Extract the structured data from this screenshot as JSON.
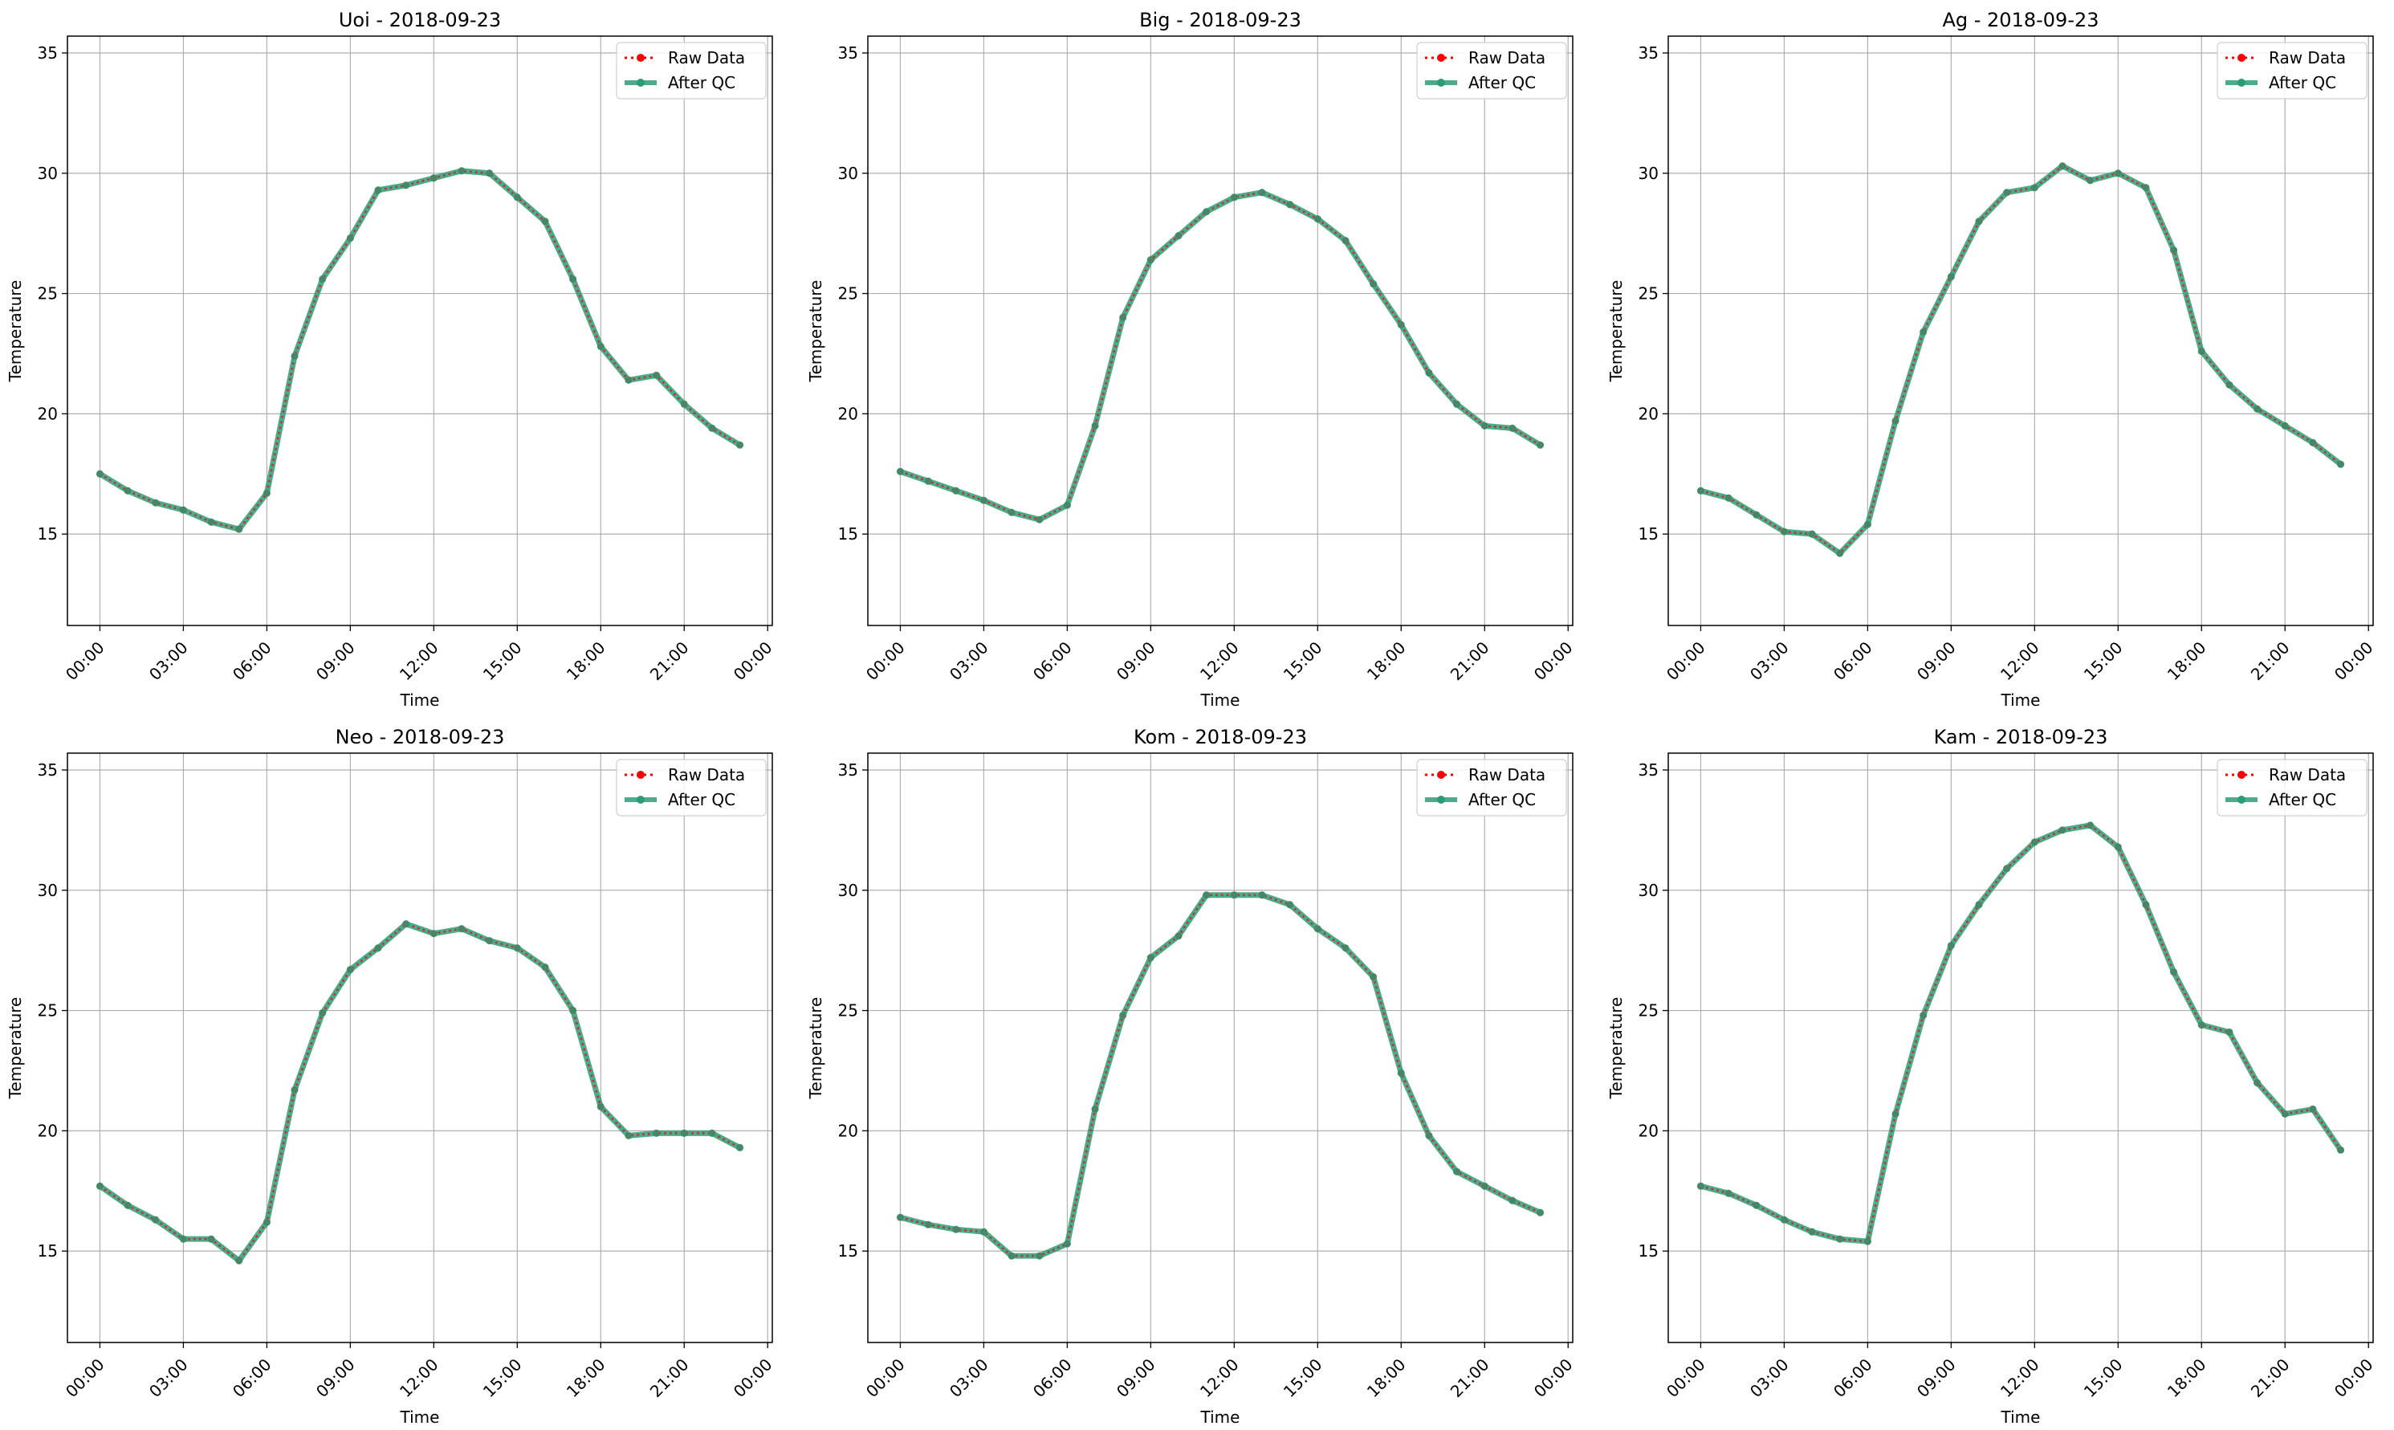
{
  "colors": {
    "raw": "#ff0000",
    "qc": "#2a9d78",
    "grid": "#b0b0b0",
    "axis": "#000000"
  },
  "legend": {
    "placement": "top-right",
    "entries": [
      "Raw Data",
      "After QC"
    ]
  },
  "chart_data": [
    {
      "type": "line",
      "title": "Uoi - 2018-09-23",
      "xlabel": "Time",
      "ylabel": "Temperature",
      "x_ticks": [
        "00:00",
        "03:00",
        "06:00",
        "09:00",
        "12:00",
        "15:00",
        "18:00",
        "21:00",
        "00:00"
      ],
      "y_ticks": [
        15,
        20,
        25,
        30,
        35
      ],
      "xlim": [
        "2018-09-22 22:50",
        "2018-09-24 00:10"
      ],
      "ylim": [
        11.2,
        35.7
      ],
      "grid": true,
      "x": [
        "00:00",
        "01:00",
        "02:00",
        "03:00",
        "04:00",
        "05:00",
        "06:00",
        "07:00",
        "08:00",
        "09:00",
        "10:00",
        "11:00",
        "12:00",
        "13:00",
        "14:00",
        "15:00",
        "16:00",
        "17:00",
        "18:00",
        "19:00",
        "20:00",
        "21:00",
        "22:00",
        "23:00"
      ],
      "series": [
        {
          "name": "Raw Data",
          "values": [
            17.5,
            16.8,
            16.3,
            16.0,
            15.5,
            15.2,
            16.7,
            22.4,
            25.6,
            27.3,
            29.3,
            29.5,
            29.8,
            30.1,
            30.0,
            29.0,
            28.0,
            25.6,
            22.8,
            21.4,
            21.6,
            20.4,
            19.4,
            18.7
          ]
        },
        {
          "name": "After QC",
          "values": [
            17.5,
            16.8,
            16.3,
            16.0,
            15.5,
            15.2,
            16.7,
            22.4,
            25.6,
            27.3,
            29.3,
            29.5,
            29.8,
            30.1,
            30.0,
            29.0,
            28.0,
            25.6,
            22.8,
            21.4,
            21.6,
            20.4,
            19.4,
            18.7
          ]
        }
      ]
    },
    {
      "type": "line",
      "title": "Big - 2018-09-23",
      "xlabel": "Time",
      "ylabel": "Temperature",
      "x_ticks": [
        "00:00",
        "03:00",
        "06:00",
        "09:00",
        "12:00",
        "15:00",
        "18:00",
        "21:00",
        "00:00"
      ],
      "y_ticks": [
        15,
        20,
        25,
        30,
        35
      ],
      "xlim": [
        "2018-09-22 22:50",
        "2018-09-24 00:10"
      ],
      "ylim": [
        11.2,
        35.7
      ],
      "grid": true,
      "x": [
        "00:00",
        "01:00",
        "02:00",
        "03:00",
        "04:00",
        "05:00",
        "06:00",
        "07:00",
        "08:00",
        "09:00",
        "10:00",
        "11:00",
        "12:00",
        "13:00",
        "14:00",
        "15:00",
        "16:00",
        "17:00",
        "18:00",
        "19:00",
        "20:00",
        "21:00",
        "22:00",
        "23:00"
      ],
      "series": [
        {
          "name": "Raw Data",
          "values": [
            17.6,
            17.2,
            16.8,
            16.4,
            15.9,
            15.6,
            16.2,
            19.5,
            24.0,
            26.4,
            27.4,
            28.4,
            29.0,
            29.2,
            28.7,
            28.1,
            27.2,
            25.4,
            23.7,
            21.7,
            20.4,
            19.5,
            19.4,
            18.7
          ]
        },
        {
          "name": "After QC",
          "values": [
            17.6,
            17.2,
            16.8,
            16.4,
            15.9,
            15.6,
            16.2,
            19.5,
            24.0,
            26.4,
            27.4,
            28.4,
            29.0,
            29.2,
            28.7,
            28.1,
            27.2,
            25.4,
            23.7,
            21.7,
            20.4,
            19.5,
            19.4,
            18.7
          ]
        }
      ]
    },
    {
      "type": "line",
      "title": "Ag - 2018-09-23",
      "xlabel": "Time",
      "ylabel": "Temperature",
      "x_ticks": [
        "00:00",
        "03:00",
        "06:00",
        "09:00",
        "12:00",
        "15:00",
        "18:00",
        "21:00",
        "00:00"
      ],
      "y_ticks": [
        15,
        20,
        25,
        30,
        35
      ],
      "xlim": [
        "2018-09-22 22:50",
        "2018-09-24 00:10"
      ],
      "ylim": [
        11.2,
        35.7
      ],
      "grid": true,
      "x": [
        "00:00",
        "01:00",
        "02:00",
        "03:00",
        "04:00",
        "05:00",
        "06:00",
        "07:00",
        "08:00",
        "09:00",
        "10:00",
        "11:00",
        "12:00",
        "13:00",
        "14:00",
        "15:00",
        "16:00",
        "17:00",
        "18:00",
        "19:00",
        "20:00",
        "21:00",
        "22:00",
        "23:00"
      ],
      "series": [
        {
          "name": "Raw Data",
          "values": [
            16.8,
            16.5,
            15.8,
            15.1,
            15.0,
            14.2,
            15.4,
            19.7,
            23.4,
            25.7,
            28.0,
            29.2,
            29.4,
            30.3,
            29.7,
            30.0,
            29.4,
            26.8,
            22.6,
            21.2,
            20.2,
            19.5,
            18.8,
            17.9
          ]
        },
        {
          "name": "After QC",
          "values": [
            16.8,
            16.5,
            15.8,
            15.1,
            15.0,
            14.2,
            15.4,
            19.7,
            23.4,
            25.7,
            28.0,
            29.2,
            29.4,
            30.3,
            29.7,
            30.0,
            29.4,
            26.8,
            22.6,
            21.2,
            20.2,
            19.5,
            18.8,
            17.9
          ]
        }
      ]
    },
    {
      "type": "line",
      "title": "Neo - 2018-09-23",
      "xlabel": "Time",
      "ylabel": "Temperature",
      "x_ticks": [
        "00:00",
        "03:00",
        "06:00",
        "09:00",
        "12:00",
        "15:00",
        "18:00",
        "21:00",
        "00:00"
      ],
      "y_ticks": [
        15,
        20,
        25,
        30,
        35
      ],
      "xlim": [
        "2018-09-22 22:50",
        "2018-09-24 00:10"
      ],
      "ylim": [
        11.2,
        35.7
      ],
      "grid": true,
      "x": [
        "00:00",
        "01:00",
        "02:00",
        "03:00",
        "04:00",
        "05:00",
        "06:00",
        "07:00",
        "08:00",
        "09:00",
        "10:00",
        "11:00",
        "12:00",
        "13:00",
        "14:00",
        "15:00",
        "16:00",
        "17:00",
        "18:00",
        "19:00",
        "20:00",
        "21:00",
        "22:00",
        "23:00"
      ],
      "series": [
        {
          "name": "Raw Data",
          "values": [
            17.7,
            16.9,
            16.3,
            15.5,
            15.5,
            14.6,
            16.2,
            21.7,
            24.9,
            26.7,
            27.6,
            28.6,
            28.2,
            28.4,
            27.9,
            27.6,
            26.8,
            25.0,
            21.0,
            19.8,
            19.9,
            19.9,
            19.9,
            19.3
          ]
        },
        {
          "name": "After QC",
          "values": [
            17.7,
            16.9,
            16.3,
            15.5,
            15.5,
            14.6,
            16.2,
            21.7,
            24.9,
            26.7,
            27.6,
            28.6,
            28.2,
            28.4,
            27.9,
            27.6,
            26.8,
            25.0,
            21.0,
            19.8,
            19.9,
            19.9,
            19.9,
            19.3
          ]
        }
      ]
    },
    {
      "type": "line",
      "title": "Kom - 2018-09-23",
      "xlabel": "Time",
      "ylabel": "Temperature",
      "x_ticks": [
        "00:00",
        "03:00",
        "06:00",
        "09:00",
        "12:00",
        "15:00",
        "18:00",
        "21:00",
        "00:00"
      ],
      "y_ticks": [
        15,
        20,
        25,
        30,
        35
      ],
      "xlim": [
        "2018-09-22 22:50",
        "2018-09-24 00:10"
      ],
      "ylim": [
        11.2,
        35.7
      ],
      "grid": true,
      "x": [
        "00:00",
        "01:00",
        "02:00",
        "03:00",
        "04:00",
        "05:00",
        "06:00",
        "07:00",
        "08:00",
        "09:00",
        "10:00",
        "11:00",
        "12:00",
        "13:00",
        "14:00",
        "15:00",
        "16:00",
        "17:00",
        "18:00",
        "19:00",
        "20:00",
        "21:00",
        "22:00",
        "23:00"
      ],
      "series": [
        {
          "name": "Raw Data",
          "values": [
            16.4,
            16.1,
            15.9,
            15.8,
            14.8,
            14.8,
            15.3,
            20.9,
            24.8,
            27.2,
            28.1,
            29.8,
            29.8,
            29.8,
            29.4,
            28.4,
            27.6,
            26.4,
            22.4,
            19.8,
            18.3,
            17.7,
            17.1,
            16.6
          ]
        },
        {
          "name": "After QC",
          "values": [
            16.4,
            16.1,
            15.9,
            15.8,
            14.8,
            14.8,
            15.3,
            20.9,
            24.8,
            27.2,
            28.1,
            29.8,
            29.8,
            29.8,
            29.4,
            28.4,
            27.6,
            26.4,
            22.4,
            19.8,
            18.3,
            17.7,
            17.1,
            16.6
          ]
        }
      ]
    },
    {
      "type": "line",
      "title": "Kam - 2018-09-23",
      "xlabel": "Time",
      "ylabel": "Temperature",
      "x_ticks": [
        "00:00",
        "03:00",
        "06:00",
        "09:00",
        "12:00",
        "15:00",
        "18:00",
        "21:00",
        "00:00"
      ],
      "y_ticks": [
        15,
        20,
        25,
        30,
        35
      ],
      "xlim": [
        "2018-09-22 22:50",
        "2018-09-24 00:10"
      ],
      "ylim": [
        11.2,
        35.7
      ],
      "grid": true,
      "x": [
        "00:00",
        "01:00",
        "02:00",
        "03:00",
        "04:00",
        "05:00",
        "06:00",
        "07:00",
        "08:00",
        "09:00",
        "10:00",
        "11:00",
        "12:00",
        "13:00",
        "14:00",
        "15:00",
        "16:00",
        "17:00",
        "18:00",
        "19:00",
        "20:00",
        "21:00",
        "22:00",
        "23:00"
      ],
      "series": [
        {
          "name": "Raw Data",
          "values": [
            17.7,
            17.4,
            16.9,
            16.3,
            15.8,
            15.5,
            15.4,
            20.7,
            24.8,
            27.7,
            29.4,
            30.9,
            32.0,
            32.5,
            32.7,
            31.8,
            29.4,
            26.6,
            24.4,
            24.1,
            22.0,
            20.7,
            20.9,
            19.2
          ]
        },
        {
          "name": "After QC",
          "values": [
            17.7,
            17.4,
            16.9,
            16.3,
            15.8,
            15.5,
            15.4,
            20.7,
            24.8,
            27.7,
            29.4,
            30.9,
            32.0,
            32.5,
            32.7,
            31.8,
            29.4,
            26.6,
            24.4,
            24.1,
            22.0,
            20.7,
            20.9,
            19.2
          ]
        }
      ]
    }
  ]
}
